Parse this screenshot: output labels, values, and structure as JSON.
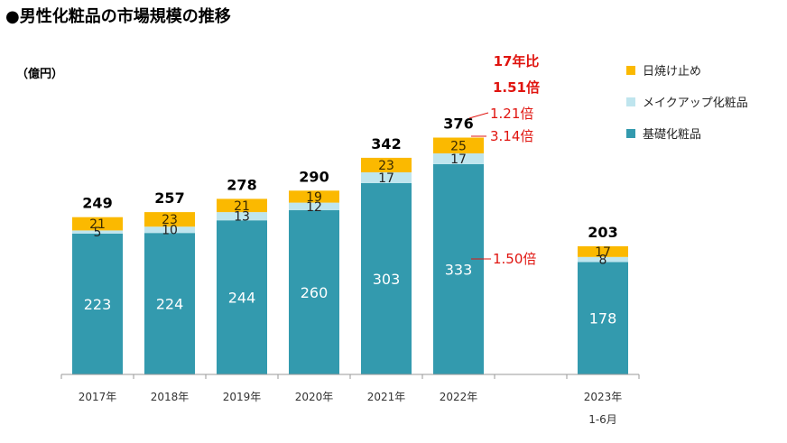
{
  "chart_data": {
    "type": "bar",
    "stacked": true,
    "title": "●男性化粧品の市場規模の推移",
    "ylabel": "（億円）",
    "ylim": [
      0,
      400
    ],
    "categories": [
      "2017年",
      "2018年",
      "2019年",
      "2020年",
      "2021年",
      "2022年",
      "",
      "2023年"
    ],
    "category_sublabels": [
      "",
      "",
      "",
      "",
      "",
      "",
      "",
      "1-6月"
    ],
    "series": [
      {
        "name": "基礎化粧品",
        "color": "#339aae",
        "values": [
          223,
          224,
          244,
          260,
          303,
          333,
          null,
          178
        ]
      },
      {
        "name": "メイクアップ化粧品",
        "color": "#bfe5ee",
        "values": [
          5,
          10,
          13,
          12,
          17,
          17,
          null,
          8
        ]
      },
      {
        "name": "日焼け止め",
        "color": "#fbb900",
        "values": [
          21,
          23,
          21,
          19,
          23,
          25,
          null,
          17
        ]
      }
    ],
    "totals": [
      249,
      257,
      278,
      290,
      342,
      376,
      null,
      203
    ],
    "legend_position": "top-right",
    "annotations": {
      "sun_ratio": "1.21倍",
      "makeup_ratio": "3.14倍",
      "base_ratio": "1.50倍",
      "headline_line1": "17年比",
      "headline_line2": "1.51倍"
    }
  }
}
